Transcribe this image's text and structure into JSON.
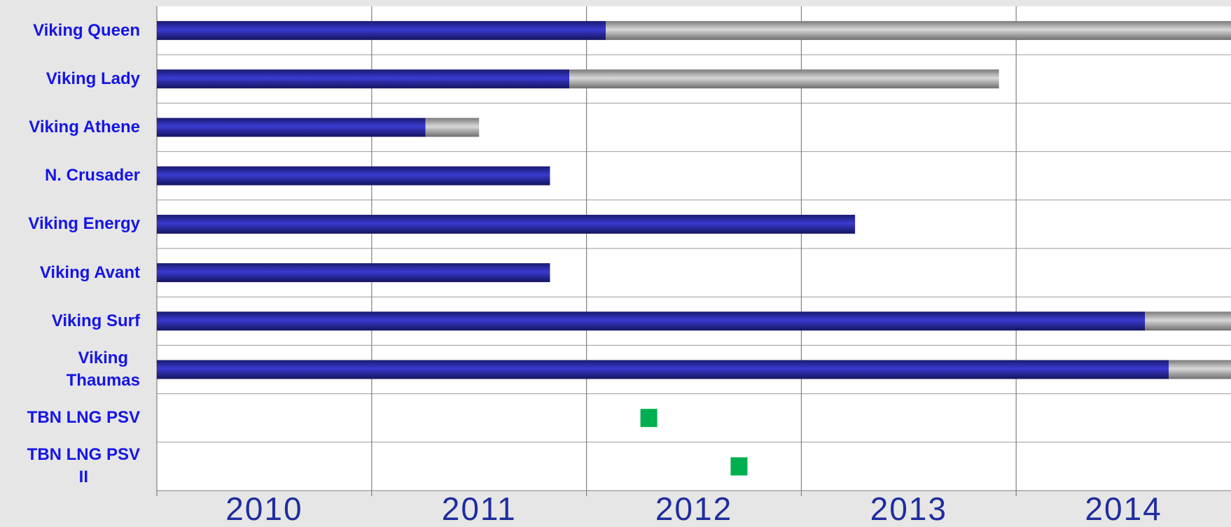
{
  "chart_data": {
    "type": "gantt",
    "categories": [
      "Viking Queen",
      "Viking Lady",
      "Viking Athene",
      "N. Crusader",
      "Viking Energy",
      "Viking Avant",
      "Viking Surf",
      "Viking\nThaumas",
      "TBN LNG PSV",
      "TBN LNG PSV\nII"
    ],
    "start": 2010,
    "series": [
      {
        "color": "#2a2ab0",
        "values": [
          2.09,
          1.92,
          1.25,
          1.83,
          3.25,
          1.83,
          4.6,
          4.71,
          null,
          null
        ]
      },
      {
        "color": "#a8a8a8",
        "values": [
          2.91,
          2.0,
          0.25,
          null,
          null,
          null,
          0.4,
          0.29,
          null,
          null
        ]
      }
    ],
    "milestones": {
      "color": "#00b050",
      "values": [
        null,
        null,
        null,
        null,
        null,
        null,
        null,
        null,
        2012.29,
        2012.71
      ]
    },
    "xlim": [
      2010,
      2015
    ],
    "xgrid": [
      2010,
      2011,
      2012,
      2013,
      2014
    ],
    "xticks": [
      {
        "value": 2010.5,
        "label": "2010"
      },
      {
        "value": 2011.5,
        "label": "2011"
      },
      {
        "value": 2012.5,
        "label": "2012"
      },
      {
        "value": 2013.5,
        "label": "2013"
      },
      {
        "value": 2014.5,
        "label": "2014"
      }
    ],
    "grid": true
  }
}
